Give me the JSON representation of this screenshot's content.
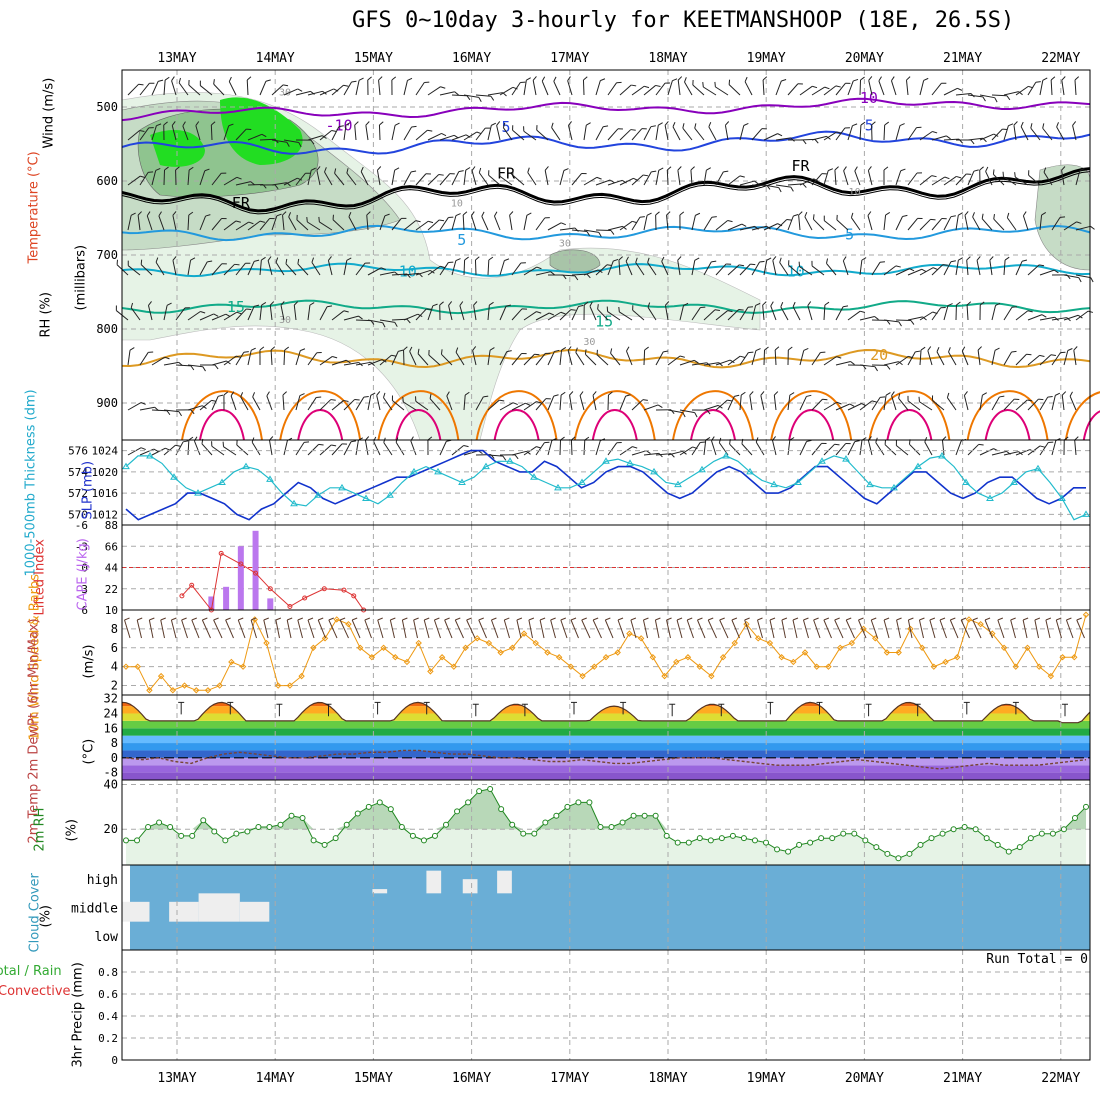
{
  "title": "GFS 0~10day 3-hourly for KEETMANSHOOP (18E, 26.5S)",
  "colors": {
    "temp_m10": "#8800bb",
    "temp_m5": "#2244dd",
    "temp_fr": "#000000",
    "temp_5": "#2299dd",
    "temp_10": "#11aacc",
    "temp_15": "#11aa88",
    "temp_20": "#dd9922",
    "temp_25": "#ee7700",
    "temp_30": "#dd0077",
    "slp": "#1133cc",
    "thickness": "#22bbcc",
    "lifted": "#dd3333",
    "cape": "#bb77ee",
    "wind10": "#ee9911",
    "rh2m": "#228822",
    "cloud": "#6aaed6",
    "grid": "#999999"
  },
  "chart_data": [
    {
      "id": "upper_air",
      "type": "contour",
      "xcategories": [
        "13MAY",
        "14MAY",
        "15MAY",
        "16MAY",
        "17MAY",
        "18MAY",
        "19MAY",
        "20MAY",
        "21MAY",
        "22MAY"
      ],
      "ylabel_parts": [
        "Wind (m/s)",
        "Temperature (°C)",
        "(millibars)",
        "RH (%)"
      ],
      "yticks": [
        500,
        600,
        700,
        800,
        900
      ],
      "ylim": [
        450,
        950
      ],
      "contour_labels": [
        {
          "text": "-10",
          "day": 1.65,
          "p": 525,
          "key": "temp_m10"
        },
        {
          "text": "-10",
          "day": 7.0,
          "p": 488,
          "key": "temp_m10"
        },
        {
          "text": "5",
          "day": 3.35,
          "p": 527,
          "key": "temp_m5"
        },
        {
          "text": "5",
          "day": 7.05,
          "p": 525,
          "key": "temp_m5"
        },
        {
          "text": "FR",
          "day": 0.65,
          "p": 630,
          "key": "temp_fr"
        },
        {
          "text": "FR",
          "day": 3.35,
          "p": 590,
          "key": "temp_fr"
        },
        {
          "text": "FR",
          "day": 6.35,
          "p": 580,
          "key": "temp_fr"
        },
        {
          "text": "5",
          "day": 2.9,
          "p": 680,
          "key": "temp_5"
        },
        {
          "text": "5",
          "day": 6.85,
          "p": 672,
          "key": "temp_5"
        },
        {
          "text": "10",
          "day": 2.35,
          "p": 722,
          "key": "temp_10"
        },
        {
          "text": "10",
          "day": 6.3,
          "p": 722,
          "key": "temp_10"
        },
        {
          "text": "15",
          "day": 0.6,
          "p": 770,
          "key": "temp_15"
        },
        {
          "text": "15",
          "day": 4.35,
          "p": 790,
          "key": "temp_15"
        },
        {
          "text": "20",
          "day": 7.15,
          "p": 835,
          "key": "temp_20"
        },
        {
          "text": "30",
          "day": 1.1,
          "p": 478,
          "key": "grid"
        },
        {
          "text": "30",
          "day": 1.1,
          "p": 785,
          "key": "grid"
        },
        {
          "text": "30",
          "day": 3.95,
          "p": 682,
          "key": "grid"
        },
        {
          "text": "30",
          "day": 4.2,
          "p": 815,
          "key": "grid"
        },
        {
          "text": "10",
          "day": 2.85,
          "p": 628,
          "key": "grid"
        },
        {
          "text": "10",
          "day": 6.9,
          "p": 612,
          "key": "grid"
        }
      ]
    },
    {
      "id": "slp_thickness",
      "type": "line",
      "left_label": "1000-500mb Thickness (dm)",
      "right_label": "SLP (mb)",
      "left_ticks": [
        570,
        572,
        574,
        576
      ],
      "right_ticks": [
        1012,
        1016,
        1020,
        1024
      ],
      "left_range": [
        569,
        577
      ],
      "right_range": [
        1010,
        1026
      ],
      "slp": [
        1013,
        1011,
        1012,
        1013,
        1014,
        1016,
        1016,
        1015,
        1014,
        1012,
        1011,
        1013,
        1014,
        1016,
        1018,
        1017,
        1015,
        1014,
        1015,
        1016,
        1017,
        1018,
        1019,
        1019,
        1020,
        1021,
        1022,
        1023,
        1024,
        1024,
        1022,
        1021,
        1020,
        1020,
        1022,
        1021,
        1019,
        1017,
        1018,
        1020,
        1021,
        1021,
        1020,
        1018,
        1016,
        1015,
        1016,
        1018,
        1020,
        1021,
        1020,
        1018,
        1016,
        1016,
        1017,
        1019,
        1021,
        1021,
        1019,
        1017,
        1015,
        1014,
        1016,
        1018,
        1020,
        1020,
        1018,
        1016,
        1015,
        1016,
        1018,
        1019,
        1019,
        1017,
        1015,
        1014,
        1015,
        1017,
        1017
      ],
      "thickness": [
        574.5,
        575.5,
        575.5,
        574.8,
        573.5,
        572.5,
        572.0,
        572.5,
        573.0,
        574.0,
        574.5,
        574.2,
        573.3,
        572.0,
        571.0,
        570.8,
        571.8,
        572.5,
        572.5,
        572.0,
        571.5,
        571.0,
        571.8,
        573.0,
        574.0,
        574.5,
        574.0,
        573.5,
        573.0,
        573.5,
        574.5,
        575.0,
        575.0,
        574.5,
        573.5,
        573.0,
        572.5,
        572.5,
        573.0,
        574.0,
        575.0,
        575.2,
        574.8,
        574.5,
        574.0,
        573.0,
        572.8,
        573.5,
        574.2,
        575.0,
        575.5,
        575.0,
        574.0,
        573.2,
        572.8,
        572.5,
        573.0,
        574.0,
        575.0,
        575.5,
        575.2,
        574.0,
        572.8,
        572.5,
        572.5,
        573.5,
        574.5,
        575.3,
        575.5,
        574.5,
        573.0,
        572.0,
        571.5,
        572.0,
        573.0,
        574.0,
        574.3,
        573.0,
        571.5,
        569.5,
        570.0
      ]
    },
    {
      "id": "lifted_cape",
      "type": "bar+line",
      "left_label": "Lifted Index",
      "right_label": "CAPE (J/kg)",
      "left_ticks": [
        "6",
        "3",
        "0",
        "-3",
        "-6"
      ],
      "right_ticks": [
        10,
        22,
        44,
        66,
        88
      ],
      "cape_bars": [
        {
          "day": 0.35,
          "v": 14
        },
        {
          "day": 0.5,
          "v": 24
        },
        {
          "day": 0.65,
          "v": 66
        },
        {
          "day": 0.8,
          "v": 82
        },
        {
          "day": 0.95,
          "v": 12
        }
      ],
      "lifted_index": [
        {
          "day": 0.05,
          "v": 4.0
        },
        {
          "day": 0.15,
          "v": 2.5
        },
        {
          "day": 0.35,
          "v": 6.0
        },
        {
          "day": 0.45,
          "v": -2.0
        },
        {
          "day": 0.65,
          "v": -0.5
        },
        {
          "day": 0.8,
          "v": 0.8
        },
        {
          "day": 0.95,
          "v": 3.0
        },
        {
          "day": 1.15,
          "v": 5.5
        },
        {
          "day": 1.3,
          "v": 4.3
        },
        {
          "day": 1.5,
          "v": 3.0
        },
        {
          "day": 1.7,
          "v": 3.2
        },
        {
          "day": 1.8,
          "v": 4.0
        },
        {
          "day": 1.9,
          "v": 6.0
        }
      ]
    },
    {
      "id": "wind10m",
      "type": "line",
      "left_label": "10m Wind Speed & Barbs",
      "unit": "(m/s)",
      "yticks": [
        2,
        4,
        6,
        8
      ],
      "ylim": [
        1,
        10
      ],
      "values": [
        4.0,
        4.0,
        1.5,
        3.0,
        1.5,
        2.0,
        1.5,
        1.5,
        2.0,
        4.5,
        4.0,
        9.0,
        6.5,
        2.0,
        2.0,
        3.0,
        6.0,
        7.0,
        9.0,
        8.5,
        6.0,
        5.0,
        6.0,
        5.0,
        4.5,
        6.5,
        3.5,
        5.0,
        4.0,
        6.0,
        7.0,
        6.5,
        5.5,
        6.0,
        7.5,
        6.5,
        5.5,
        5.0,
        4.0,
        3.0,
        4.0,
        5.0,
        5.5,
        7.5,
        7.0,
        5.0,
        3.0,
        4.5,
        5.0,
        4.0,
        3.0,
        5.0,
        6.5,
        8.5,
        7.0,
        6.5,
        5.0,
        4.5,
        5.5,
        4.0,
        4.0,
        6.0,
        6.5,
        8.0,
        7.0,
        5.5,
        5.5,
        8.0,
        6.0,
        4.0,
        4.5,
        5.0,
        9.0,
        8.5,
        7.5,
        6.0,
        4.0,
        6.0,
        4.0,
        3.0,
        5.0,
        5.0,
        9.5
      ]
    },
    {
      "id": "temp2m",
      "type": "area",
      "left_label": "2m Temp 2m DewPt (6hr Min/Max)",
      "unit": "(°C)",
      "yticks": [
        "32",
        "24",
        "16",
        "8",
        "0",
        "-8"
      ],
      "ylim": [
        -12,
        34
      ],
      "temp_day_max": [
        30,
        30,
        30,
        29,
        28,
        29,
        30,
        30,
        29,
        29
      ],
      "temp_night_min": [
        20,
        20,
        20,
        20,
        20,
        20,
        20,
        20,
        20,
        19
      ],
      "dewpt": [
        0,
        -1,
        0,
        -2,
        -3,
        0,
        2,
        3,
        2,
        1,
        0,
        0,
        1,
        2,
        2,
        3,
        3,
        4,
        4,
        3,
        2,
        2,
        1,
        0,
        0,
        -1,
        -2,
        -2,
        -1,
        -2,
        -3,
        -3,
        -2,
        -1,
        0,
        0,
        0,
        -1,
        -2,
        -3,
        -4,
        -4,
        -4,
        -3,
        -2,
        -1,
        -2,
        -3,
        -4,
        -5,
        -6,
        -5,
        -4,
        -3,
        -4,
        -4,
        -4,
        -3,
        -2,
        -1
      ]
    },
    {
      "id": "rh2m",
      "type": "area",
      "left_label": "2m RH",
      "unit": "(%)",
      "yticks": [
        20,
        40
      ],
      "ylim": [
        4,
        42
      ],
      "values": [
        15,
        15,
        21,
        23,
        21,
        17,
        17,
        24,
        19,
        15,
        18,
        19,
        21,
        21,
        22,
        26,
        25,
        15,
        13,
        16,
        22,
        27,
        30,
        32,
        29,
        21,
        17,
        15,
        17,
        22,
        28,
        32,
        37,
        38,
        29,
        22,
        18,
        18,
        23,
        26,
        30,
        32,
        32,
        21,
        21,
        23,
        26,
        26,
        26,
        17,
        14,
        14,
        16,
        15,
        16,
        17,
        16,
        15,
        14,
        11,
        10,
        13,
        14,
        16,
        16,
        18,
        18,
        15,
        12,
        9,
        7,
        9,
        13,
        16,
        18,
        20,
        21,
        20,
        16,
        13,
        10,
        12,
        16,
        18,
        18,
        20,
        25,
        30
      ]
    },
    {
      "id": "cloud",
      "type": "bar",
      "left_label": "Cloud Cover",
      "unit": "(%)",
      "levels": [
        "high",
        "middle",
        "low"
      ],
      "gaps": [
        {
          "d0": 0.0,
          "d1": 0.28,
          "band": "middle",
          "depth": 0.7
        },
        {
          "d0": 0.48,
          "d1": 0.78,
          "band": "middle",
          "depth": 0.7
        },
        {
          "d0": 0.78,
          "d1": 1.2,
          "band": "middle",
          "depth": 1.0
        },
        {
          "d0": 1.2,
          "d1": 1.5,
          "band": "middle",
          "depth": 0.7
        },
        {
          "d0": 2.55,
          "d1": 2.7,
          "band": "high",
          "depth": 0.15
        },
        {
          "d0": 3.1,
          "d1": 3.25,
          "band": "high",
          "depth": 0.8
        },
        {
          "d0": 3.47,
          "d1": 3.62,
          "band": "high",
          "depth": 0.5
        },
        {
          "d0": 3.82,
          "d1": 3.97,
          "band": "high",
          "depth": 0.8
        }
      ]
    },
    {
      "id": "precip",
      "type": "bar",
      "left_label": "Total / Rain Convective",
      "left_label_parts": [
        "Total / Rain",
        "Convective"
      ],
      "unit": "3hr Precip (mm)",
      "yticks": [
        "0",
        "0.2",
        "0.4",
        "0.6",
        "0.8"
      ],
      "ylim": [
        0,
        1
      ],
      "run_total": "Run Total = 0",
      "values": []
    }
  ]
}
